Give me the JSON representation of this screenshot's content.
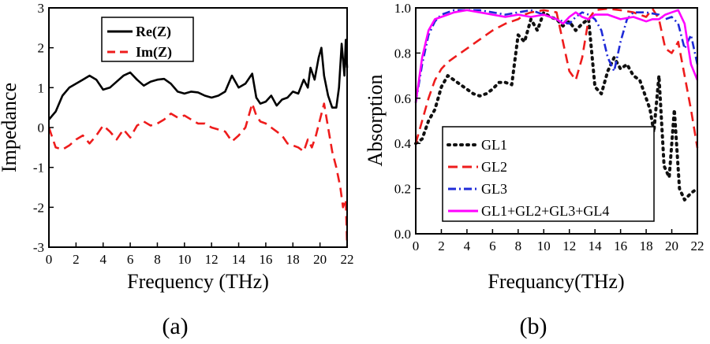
{
  "chart_data": [
    {
      "type": "line",
      "panel_label": "(a)",
      "xlabel": "Frequency (THz)",
      "ylabel": "Impedance",
      "xlim": [
        0,
        22
      ],
      "ylim": [
        -3,
        3
      ],
      "xticks": [
        "0",
        "2",
        "4",
        "6",
        "8",
        "10",
        "12",
        "14",
        "16",
        "18",
        "20",
        "22"
      ],
      "yticks": [
        "-3",
        "-2",
        "-1",
        "0",
        "1",
        "2",
        "3"
      ],
      "grid": false,
      "legend_position": "top-center",
      "series": [
        {
          "name": "Re(Z)",
          "color": "#000000",
          "dash": "solid",
          "x": [
            0,
            0.5,
            1,
            1.5,
            2,
            2.5,
            3,
            3.5,
            4,
            4.5,
            5,
            5.5,
            6,
            6.5,
            7,
            7.5,
            8,
            8.5,
            9,
            9.5,
            10,
            10.5,
            11,
            11.5,
            12,
            12.5,
            13,
            13.5,
            14,
            14.5,
            15,
            15.3,
            15.6,
            16,
            16.4,
            16.8,
            17.2,
            17.6,
            18,
            18.4,
            18.8,
            19.1,
            19.3,
            19.6,
            19.9,
            20.1,
            20.3,
            20.6,
            20.9,
            21.2,
            21.4,
            21.6,
            21.8,
            21.9,
            22
          ],
          "values": [
            0.2,
            0.4,
            0.8,
            1.0,
            1.1,
            1.2,
            1.3,
            1.2,
            0.95,
            1.0,
            1.15,
            1.3,
            1.38,
            1.2,
            1.05,
            1.15,
            1.2,
            1.22,
            1.1,
            0.9,
            0.85,
            0.9,
            0.88,
            0.8,
            0.75,
            0.8,
            0.9,
            1.3,
            1.0,
            1.1,
            1.35,
            0.75,
            0.6,
            0.65,
            0.8,
            0.55,
            0.7,
            0.75,
            0.9,
            0.85,
            1.2,
            1.0,
            1.5,
            1.2,
            1.75,
            2.0,
            1.3,
            0.8,
            0.5,
            0.5,
            1.0,
            2.1,
            1.3,
            2.2,
            1.5
          ]
        },
        {
          "name": "Im(Z)",
          "color": "#ee1c1c",
          "dash": "dashed",
          "x": [
            0,
            0.5,
            1,
            1.5,
            2,
            2.5,
            3,
            3.5,
            4,
            4.5,
            5,
            5.5,
            6,
            6.5,
            7,
            7.5,
            8,
            8.5,
            9,
            9.5,
            10,
            10.5,
            11,
            11.5,
            12,
            12.5,
            13,
            13.5,
            14,
            14.5,
            15,
            15.3,
            15.6,
            16,
            16.4,
            16.8,
            17.2,
            17.6,
            18,
            18.4,
            18.8,
            19.1,
            19.4,
            19.7,
            20,
            20.3,
            20.6,
            20.9,
            21.2,
            21.5,
            21.7,
            21.9,
            22
          ],
          "values": [
            0,
            -0.5,
            -0.55,
            -0.45,
            -0.3,
            -0.2,
            -0.4,
            -0.2,
            0.05,
            -0.1,
            -0.3,
            -0.05,
            -0.25,
            0.05,
            0.15,
            0.05,
            0.1,
            0.2,
            0.35,
            0.25,
            0.3,
            0.2,
            0.1,
            0.1,
            0.0,
            -0.05,
            -0.1,
            -0.35,
            -0.2,
            0.0,
            0.6,
            0.3,
            0.15,
            0.1,
            0.0,
            -0.1,
            -0.2,
            -0.4,
            -0.45,
            -0.5,
            -0.6,
            -0.3,
            -0.5,
            -0.2,
            0.2,
            0.6,
            0.0,
            -0.6,
            -1.0,
            -1.5,
            -2.0,
            -1.8,
            -3.0
          ]
        }
      ]
    },
    {
      "type": "line",
      "panel_label": "(b)",
      "xlabel": "Frequancy(THz)",
      "ylabel": "Absorption",
      "xlim": [
        0,
        22
      ],
      "ylim": [
        0.0,
        1.0
      ],
      "xticks": [
        "0",
        "2",
        "4",
        "6",
        "8",
        "10",
        "12",
        "14",
        "16",
        "18",
        "20",
        "22"
      ],
      "yticks": [
        "0.0",
        "0.2",
        "0.4",
        "0.6",
        "0.8",
        "1.0"
      ],
      "grid": false,
      "legend_position": "bottom-left",
      "series": [
        {
          "name": "GL1",
          "color": "#111111",
          "dash": "dotted",
          "x": [
            0,
            0.5,
            1,
            1.5,
            2,
            2.5,
            3,
            3.5,
            4,
            4.5,
            5,
            5.5,
            6,
            6.5,
            7,
            7.5,
            8,
            8.5,
            9,
            9.5,
            10,
            10.5,
            11,
            11.5,
            12,
            12.5,
            13,
            13.5,
            14,
            14.5,
            15,
            15.5,
            16,
            16.5,
            17,
            17.5,
            18,
            18.3,
            18.6,
            19,
            19.4,
            19.8,
            20.2,
            20.6,
            21,
            21.5,
            22
          ],
          "values": [
            0.4,
            0.42,
            0.5,
            0.55,
            0.65,
            0.7,
            0.68,
            0.66,
            0.64,
            0.62,
            0.61,
            0.62,
            0.64,
            0.67,
            0.67,
            0.66,
            0.88,
            0.85,
            0.95,
            0.9,
            0.98,
            0.96,
            0.95,
            0.92,
            0.94,
            0.9,
            0.93,
            0.95,
            0.65,
            0.62,
            0.72,
            0.78,
            0.73,
            0.75,
            0.7,
            0.68,
            0.6,
            0.55,
            0.45,
            0.7,
            0.3,
            0.25,
            0.55,
            0.2,
            0.15,
            0.18,
            0.2
          ]
        },
        {
          "name": "GL2",
          "color": "#ee1c1c",
          "dash": "dashed",
          "x": [
            0,
            0.5,
            1,
            1.5,
            2,
            2.5,
            3,
            4,
            5,
            6,
            7,
            8,
            8.5,
            9,
            10,
            11,
            11.5,
            12,
            12.5,
            13,
            13.5,
            14,
            15,
            16,
            17,
            18,
            18.5,
            19,
            19.5,
            20,
            20.5,
            21,
            21.5,
            22
          ],
          "values": [
            0.4,
            0.5,
            0.6,
            0.68,
            0.73,
            0.76,
            0.78,
            0.82,
            0.86,
            0.9,
            0.93,
            0.95,
            0.97,
            0.98,
            0.99,
            0.98,
            0.85,
            0.72,
            0.68,
            0.78,
            0.95,
            0.99,
            1.0,
            0.99,
            0.98,
            0.96,
            1.0,
            0.95,
            0.82,
            0.8,
            0.85,
            0.7,
            0.55,
            0.38
          ]
        },
        {
          "name": "GL3",
          "color": "#1f2bd8",
          "dash": "dashdot",
          "x": [
            0,
            0.5,
            1,
            1.5,
            2,
            2.5,
            3,
            4,
            5,
            6,
            7,
            8,
            9,
            10,
            11,
            12,
            12.5,
            13,
            13.5,
            14,
            14.5,
            15,
            15.5,
            16,
            16.5,
            17,
            18,
            19,
            19.5,
            20,
            20.5,
            21,
            21.5,
            22
          ],
          "values": [
            0.58,
            0.75,
            0.88,
            0.94,
            0.97,
            0.98,
            0.99,
            0.99,
            0.99,
            0.98,
            0.97,
            0.98,
            0.99,
            0.97,
            0.95,
            0.93,
            0.96,
            0.98,
            0.97,
            0.95,
            0.9,
            0.78,
            0.72,
            0.85,
            0.95,
            0.98,
            0.98,
            0.97,
            0.95,
            0.96,
            0.93,
            0.82,
            0.88,
            0.75
          ]
        },
        {
          "name": "GL1+GL2+GL3+GL4",
          "color": "#ff00ff",
          "dash": "solid",
          "x": [
            0,
            0.5,
            1,
            1.5,
            2,
            2.5,
            3,
            4,
            5,
            6,
            7,
            8,
            9,
            10,
            11,
            11.5,
            12,
            12.5,
            13,
            13.5,
            14,
            15,
            16,
            17,
            18,
            18.5,
            19,
            19.5,
            20,
            20.5,
            21,
            21.5,
            22
          ],
          "values": [
            0.58,
            0.78,
            0.9,
            0.95,
            0.96,
            0.97,
            0.98,
            0.99,
            0.98,
            0.97,
            0.96,
            0.97,
            0.96,
            0.97,
            0.95,
            0.93,
            0.96,
            0.98,
            0.96,
            0.95,
            0.97,
            0.97,
            0.95,
            0.96,
            0.94,
            0.95,
            0.95,
            0.97,
            0.98,
            0.99,
            0.93,
            0.75,
            0.68
          ]
        }
      ]
    }
  ]
}
